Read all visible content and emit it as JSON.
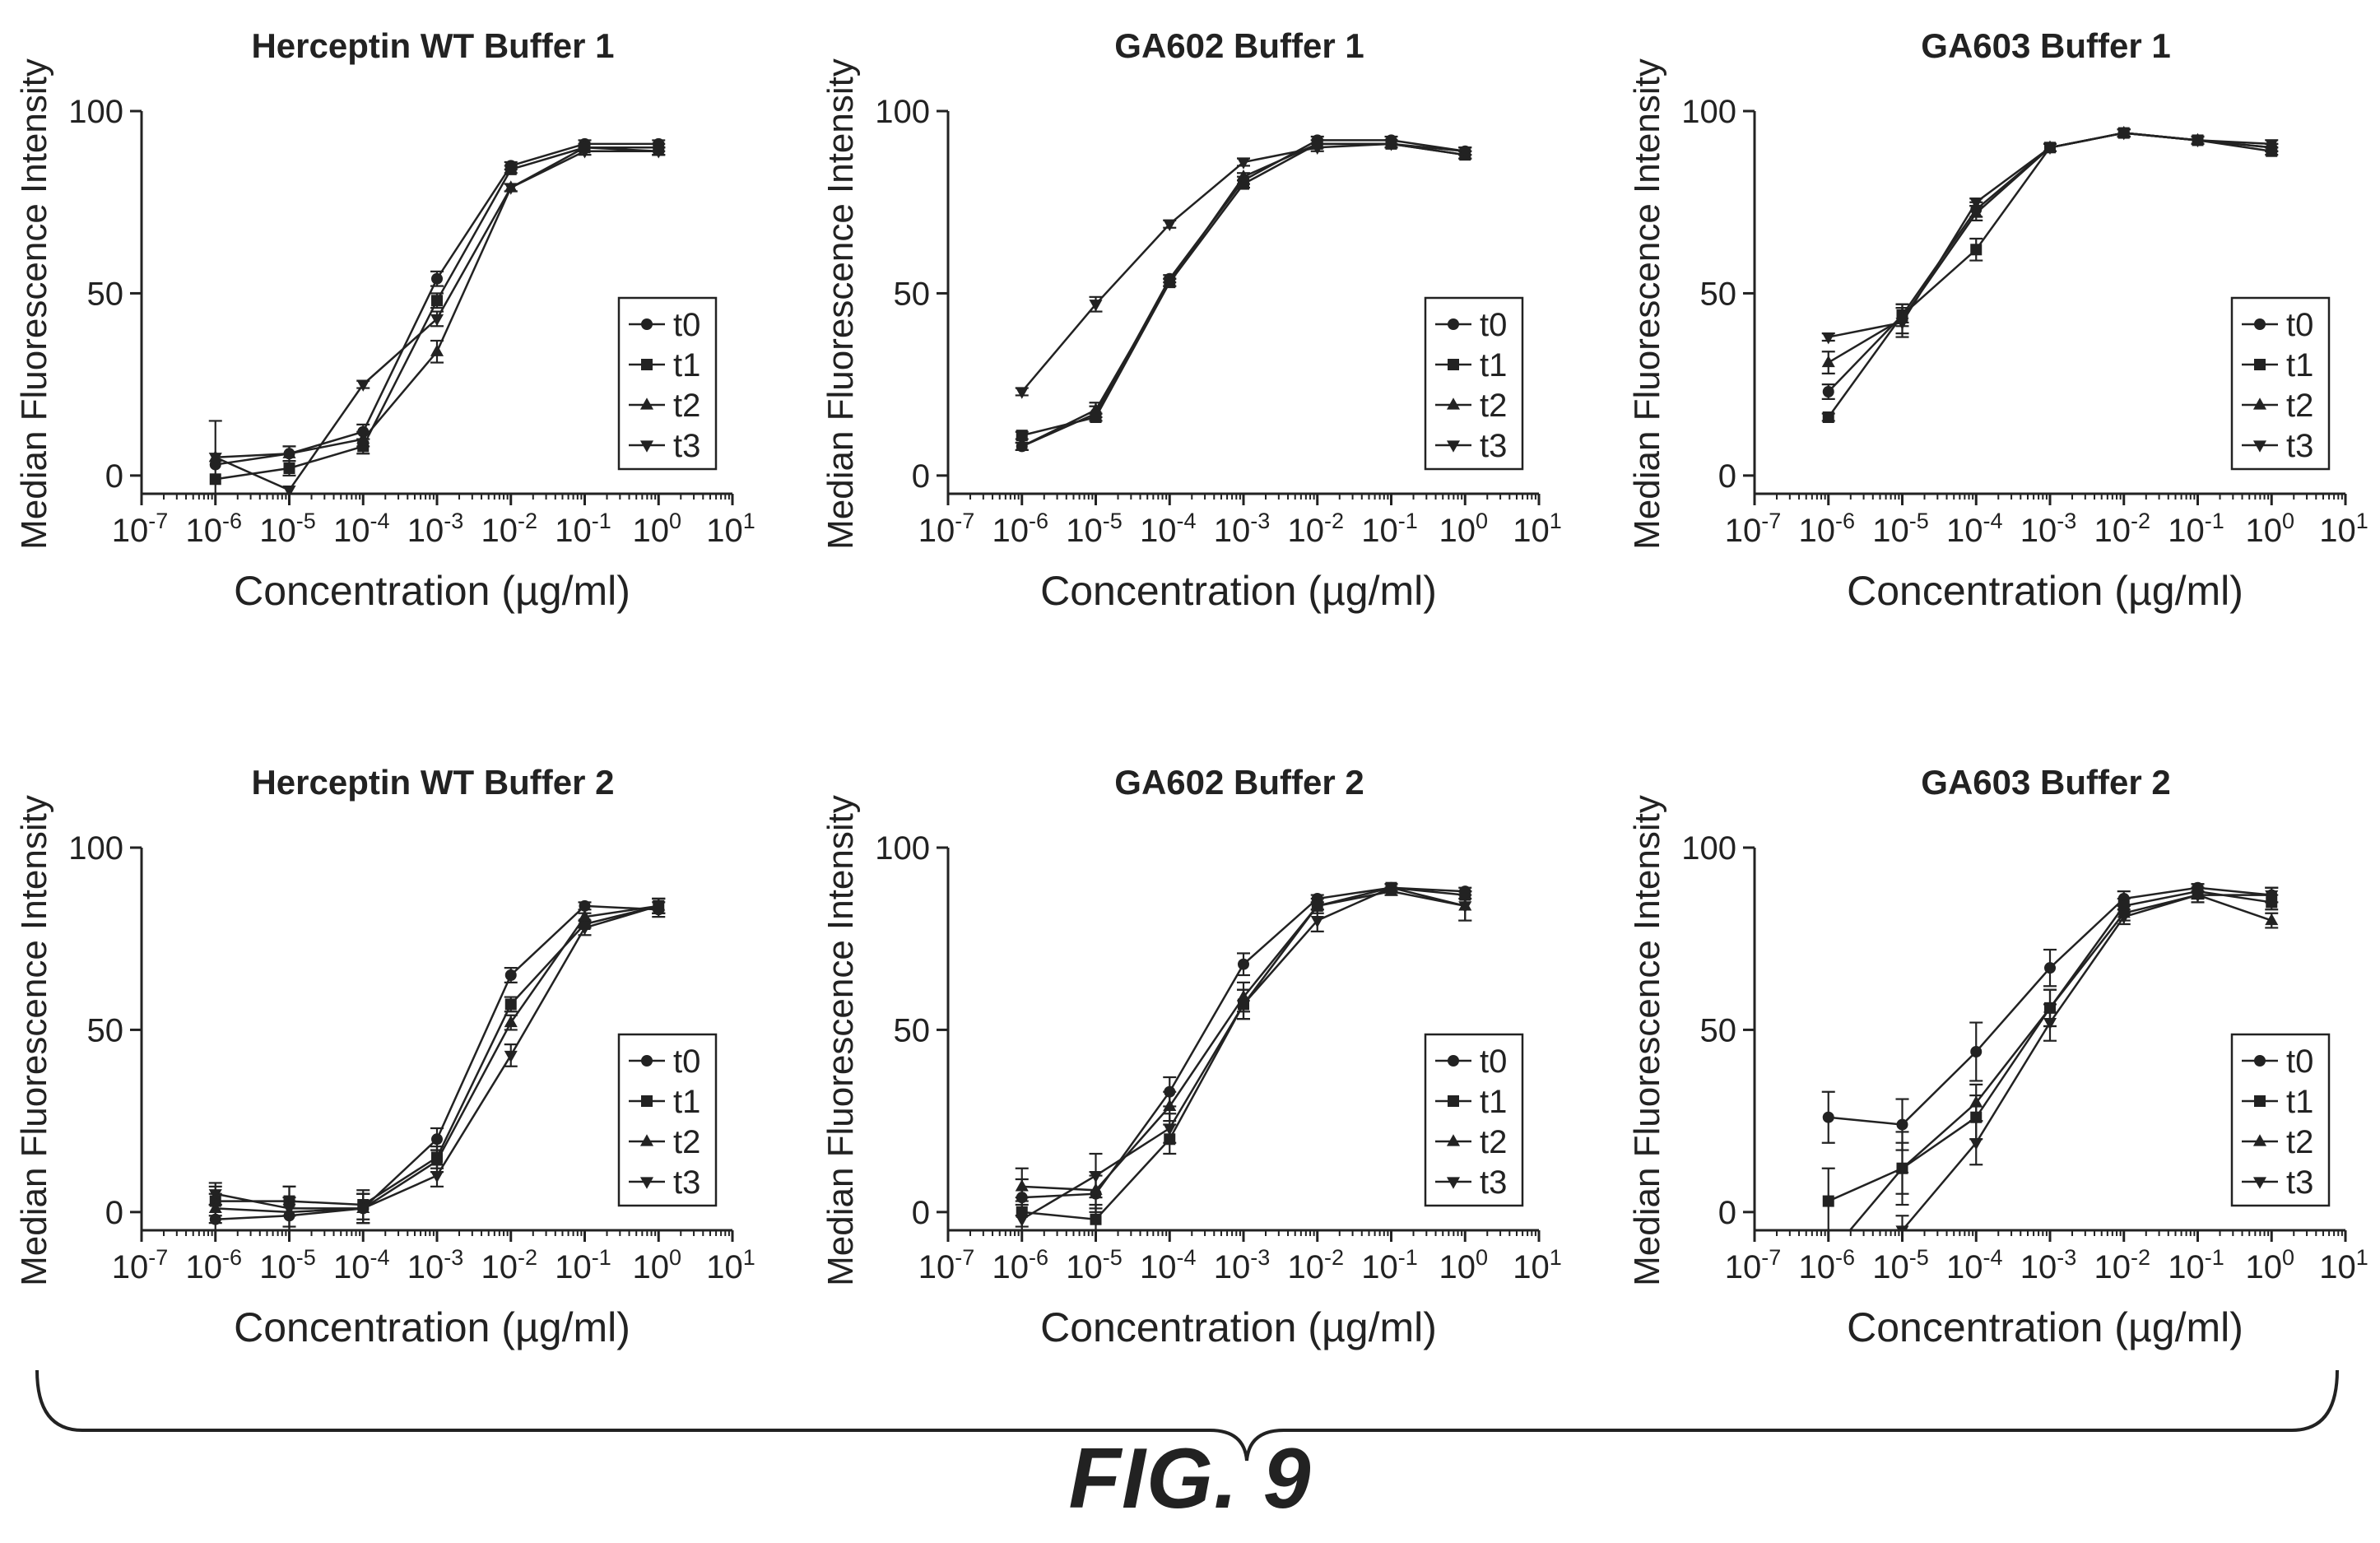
{
  "figure_label": "FIG. 9",
  "axis_text": {
    "xlabel": "Concentration (µg/ml)",
    "ylabel": "Median Fluorescence Intensity",
    "x_ticks": [
      "10-7",
      "10-6",
      "10-5",
      "10-4",
      "10-3",
      "10-2",
      "10-1",
      "100",
      "101"
    ],
    "y_ticks": [
      "0",
      "50",
      "100"
    ]
  },
  "legend_labels": [
    "t0",
    "t1",
    "t2",
    "t3"
  ],
  "chart_data": [
    {
      "type": "line",
      "title": "Herceptin WT Buffer 1",
      "xlabel": "Concentration (µg/ml)",
      "ylabel": "Median Fluorescence Intensity",
      "x_scale": "log",
      "xlim": [
        1e-07,
        10
      ],
      "ylim": [
        -5,
        100
      ],
      "legend_position": "bottom-right",
      "x": [
        1e-06,
        1e-05,
        0.0001,
        0.001,
        0.01,
        0.1,
        1
      ],
      "series": [
        {
          "name": "t0",
          "marker": "circle",
          "values": [
            3,
            6,
            12,
            54,
            85,
            91,
            91
          ],
          "errors": [
            0,
            2,
            2,
            2,
            1,
            1,
            1
          ]
        },
        {
          "name": "t1",
          "marker": "square",
          "values": [
            -1,
            2,
            8,
            48,
            84,
            90,
            90
          ],
          "errors": [
            0,
            2,
            2,
            2,
            1,
            1,
            1
          ]
        },
        {
          "name": "t2",
          "marker": "triangle-up",
          "values": [
            5,
            6,
            10,
            34,
            79,
            90,
            89
          ],
          "errors": [
            10,
            2,
            2,
            3,
            1,
            1,
            1
          ]
        },
        {
          "name": "t3",
          "marker": "triangle-down",
          "values": [
            5,
            -4,
            25,
            43,
            79,
            89,
            89
          ],
          "errors": [
            0,
            0,
            1,
            2,
            1,
            1,
            1
          ]
        }
      ]
    },
    {
      "type": "line",
      "title": "GA602 Buffer 1",
      "xlabel": "Concentration (µg/ml)",
      "ylabel": "Median Fluorescence Intensity",
      "x_scale": "log",
      "xlim": [
        1e-07,
        10
      ],
      "ylim": [
        -5,
        100
      ],
      "legend_position": "bottom-right",
      "x": [
        1e-06,
        1e-05,
        0.0001,
        0.001,
        0.01,
        0.1,
        1
      ],
      "series": [
        {
          "name": "t0",
          "marker": "circle",
          "values": [
            8,
            17,
            54,
            81,
            92,
            92,
            89
          ],
          "errors": [
            1,
            2,
            1,
            1,
            1,
            1,
            1
          ]
        },
        {
          "name": "t1",
          "marker": "square",
          "values": [
            11,
            16,
            53,
            80,
            91,
            91,
            88
          ],
          "errors": [
            1,
            1,
            1,
            1,
            1,
            1,
            1
          ]
        },
        {
          "name": "t2",
          "marker": "triangle-up",
          "values": [
            8,
            18,
            53,
            82,
            91,
            91,
            88
          ],
          "errors": [
            1,
            2,
            1,
            1,
            1,
            1,
            1
          ]
        },
        {
          "name": "t3",
          "marker": "triangle-down",
          "values": [
            23,
            47,
            69,
            86,
            90,
            91,
            89
          ],
          "errors": [
            1,
            2,
            1,
            1,
            1,
            1,
            1
          ]
        }
      ]
    },
    {
      "type": "line",
      "title": "GA603 Buffer 1",
      "xlabel": "Concentration (µg/ml)",
      "ylabel": "Median Fluorescence Intensity",
      "x_scale": "log",
      "xlim": [
        1e-07,
        10
      ],
      "ylim": [
        -5,
        100
      ],
      "legend_position": "bottom-right",
      "x": [
        1e-06,
        1e-05,
        0.0001,
        0.001,
        0.01,
        0.1,
        1
      ],
      "series": [
        {
          "name": "t0",
          "marker": "circle",
          "values": [
            23,
            44,
            73,
            90,
            94,
            92,
            90
          ],
          "errors": [
            2,
            2,
            2,
            1,
            1,
            1,
            1
          ]
        },
        {
          "name": "t1",
          "marker": "square",
          "values": [
            16,
            44,
            62,
            90,
            94,
            92,
            89
          ],
          "errors": [
            1,
            3,
            3,
            1,
            1,
            1,
            1
          ]
        },
        {
          "name": "t2",
          "marker": "triangle-up",
          "values": [
            31,
            43,
            72,
            90,
            94,
            92,
            90
          ],
          "errors": [
            3,
            4,
            2,
            1,
            1,
            1,
            1
          ]
        },
        {
          "name": "t3",
          "marker": "triangle-down",
          "values": [
            38,
            42,
            75,
            90,
            94,
            92,
            91
          ],
          "errors": [
            1,
            4,
            1,
            1,
            1,
            1,
            1
          ]
        }
      ]
    },
    {
      "type": "line",
      "title": "Herceptin WT Buffer 2",
      "xlabel": "Concentration (µg/ml)",
      "ylabel": "Median Fluorescence Intensity",
      "x_scale": "log",
      "xlim": [
        1e-07,
        10
      ],
      "ylim": [
        -5,
        100
      ],
      "legend_position": "bottom-right",
      "x": [
        1e-06,
        1e-05,
        0.0001,
        0.001,
        0.01,
        0.1,
        1
      ],
      "series": [
        {
          "name": "t0",
          "marker": "circle",
          "values": [
            -2,
            -1,
            1,
            20,
            65,
            84,
            83
          ],
          "errors": [
            4,
            4,
            4,
            3,
            2,
            1,
            2
          ]
        },
        {
          "name": "t1",
          "marker": "square",
          "values": [
            3,
            3,
            2,
            15,
            57,
            79,
            84
          ],
          "errors": [
            4,
            4,
            4,
            3,
            2,
            1,
            2
          ]
        },
        {
          "name": "t2",
          "marker": "triangle-up",
          "values": [
            1,
            0,
            1,
            14,
            52,
            81,
            84
          ],
          "errors": [
            4,
            4,
            4,
            3,
            2,
            1,
            2
          ]
        },
        {
          "name": "t3",
          "marker": "triangle-down",
          "values": [
            5,
            1,
            1,
            10,
            43,
            78,
            84
          ],
          "errors": [
            3,
            6,
            4,
            3,
            3,
            2,
            2
          ]
        }
      ]
    },
    {
      "type": "line",
      "title": "GA602 Buffer 2",
      "xlabel": "Concentration (µg/ml)",
      "ylabel": "Median Fluorescence Intensity",
      "x_scale": "log",
      "xlim": [
        1e-07,
        10
      ],
      "ylim": [
        -5,
        100
      ],
      "legend_position": "bottom-right",
      "x": [
        1e-06,
        1e-05,
        0.0001,
        0.001,
        0.01,
        0.1,
        1
      ],
      "series": [
        {
          "name": "t0",
          "marker": "circle",
          "values": [
            4,
            5,
            33,
            68,
            86,
            89,
            88
          ],
          "errors": [
            5,
            5,
            4,
            3,
            1,
            1,
            1
          ]
        },
        {
          "name": "t1",
          "marker": "square",
          "values": [
            0,
            -2,
            20,
            57,
            84,
            89,
            87
          ],
          "errors": [
            4,
            4,
            4,
            4,
            1,
            1,
            1
          ]
        },
        {
          "name": "t2",
          "marker": "triangle-up",
          "values": [
            7,
            6,
            29,
            59,
            84,
            88,
            84
          ],
          "errors": [
            5,
            5,
            4,
            4,
            2,
            1,
            4
          ]
        },
        {
          "name": "t3",
          "marker": "triangle-down",
          "values": [
            -2,
            10,
            23,
            57,
            80,
            89,
            84
          ],
          "errors": [
            5,
            6,
            4,
            4,
            3,
            1,
            4
          ]
        }
      ]
    },
    {
      "type": "line",
      "title": "GA603 Buffer 2",
      "xlabel": "Concentration (µg/ml)",
      "ylabel": "Median Fluorescence Intensity",
      "x_scale": "log",
      "xlim": [
        1e-07,
        10
      ],
      "ylim": [
        -5,
        100
      ],
      "legend_position": "bottom-right",
      "x": [
        1e-06,
        1e-05,
        0.0001,
        0.001,
        0.01,
        0.1,
        1
      ],
      "series": [
        {
          "name": "t0",
          "marker": "circle",
          "values": [
            26,
            24,
            44,
            67,
            86,
            89,
            87
          ],
          "errors": [
            7,
            7,
            8,
            5,
            2,
            1,
            2
          ]
        },
        {
          "name": "t1",
          "marker": "square",
          "values": [
            3,
            12,
            26,
            56,
            84,
            88,
            85
          ],
          "errors": [
            9,
            10,
            6,
            5,
            2,
            2,
            2
          ]
        },
        {
          "name": "t2",
          "marker": "triangle-up",
          "values": [
            -12,
            12,
            30,
            56,
            82,
            87,
            80
          ],
          "errors": [
            4,
            7,
            5,
            5,
            2,
            2,
            2
          ]
        },
        {
          "name": "t3",
          "marker": "triangle-down",
          "values": [
            -15,
            -5,
            19,
            52,
            81,
            87,
            87
          ],
          "errors": [
            4,
            4,
            6,
            5,
            2,
            2,
            2
          ]
        }
      ]
    }
  ]
}
